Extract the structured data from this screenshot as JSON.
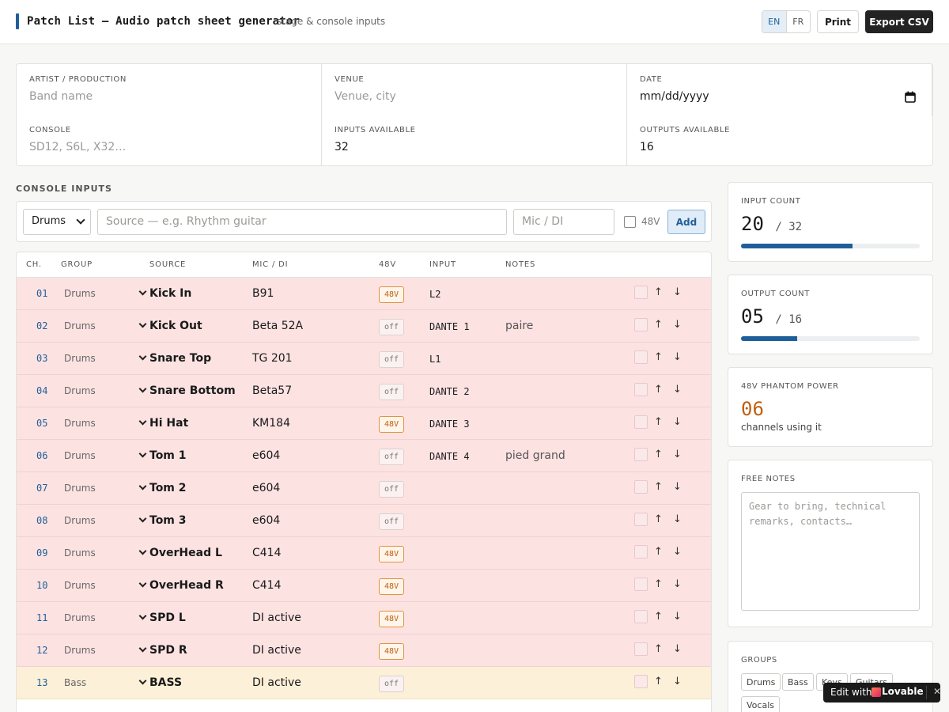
{
  "header": {
    "title": "Patch List — Audio patch sheet generator",
    "subtitle": "stage & console inputs",
    "lang_en": "EN",
    "lang_fr": "FR",
    "print_label": "Print",
    "export_label": "Export CSV"
  },
  "info": {
    "artist_label": "ARTIST / PRODUCTION",
    "artist_placeholder": "Band name",
    "venue_label": "VENUE",
    "venue_placeholder": "Venue, city",
    "date_label": "DATE",
    "date_value": "mm/dd/yyyy",
    "console_label": "CONSOLE",
    "console_placeholder": "SD12, S6L, X32…",
    "inputs_label": "INPUTS AVAILABLE",
    "inputs_value": "32",
    "outputs_label": "OUTPUTS AVAILABLE",
    "outputs_value": "16"
  },
  "section": {
    "title": "CONSOLE INPUTS"
  },
  "addrow": {
    "group_value": "Drums",
    "source_placeholder": "Source — e.g. Rhythm guitar",
    "mic_placeholder": "Mic / DI",
    "phantom_label": "48V",
    "add_label": "Add"
  },
  "table": {
    "headers": {
      "ch": "CH.",
      "group": "GROUP",
      "source": "SOURCE",
      "mic": "MIC / DI",
      "phantom": "48V",
      "input": "INPUT",
      "notes": "NOTES"
    },
    "rows": [
      {
        "ch": "01",
        "group": "Drums",
        "source": "Kick In",
        "mic": "B91",
        "phantom": "48V",
        "input": "L2",
        "notes": ""
      },
      {
        "ch": "02",
        "group": "Drums",
        "source": "Kick Out",
        "mic": "Beta 52A",
        "phantom": "off",
        "input": "DANTE 1",
        "notes": "paire"
      },
      {
        "ch": "03",
        "group": "Drums",
        "source": "Snare Top",
        "mic": "TG 201",
        "phantom": "off",
        "input": "L1",
        "notes": ""
      },
      {
        "ch": "04",
        "group": "Drums",
        "source": "Snare Bottom",
        "mic": "Beta57",
        "phantom": "off",
        "input": "DANTE 2",
        "notes": ""
      },
      {
        "ch": "05",
        "group": "Drums",
        "source": "Hi Hat",
        "mic": "KM184",
        "phantom": "48V",
        "input": "DANTE 3",
        "notes": ""
      },
      {
        "ch": "06",
        "group": "Drums",
        "source": "Tom 1",
        "mic": "e604",
        "phantom": "off",
        "input": "DANTE 4",
        "notes": "pied grand"
      },
      {
        "ch": "07",
        "group": "Drums",
        "source": "Tom 2",
        "mic": "e604",
        "phantom": "off",
        "input": "",
        "notes": ""
      },
      {
        "ch": "08",
        "group": "Drums",
        "source": "Tom 3",
        "mic": "e604",
        "phantom": "off",
        "input": "",
        "notes": ""
      },
      {
        "ch": "09",
        "group": "Drums",
        "source": "OverHead L",
        "mic": "C414",
        "phantom": "48V",
        "input": "",
        "notes": ""
      },
      {
        "ch": "10",
        "group": "Drums",
        "source": "OverHead R",
        "mic": "C414",
        "phantom": "48V",
        "input": "",
        "notes": ""
      },
      {
        "ch": "11",
        "group": "Drums",
        "source": "SPD L",
        "mic": "DI active",
        "phantom": "48V",
        "input": "",
        "notes": ""
      },
      {
        "ch": "12",
        "group": "Drums",
        "source": "SPD R",
        "mic": "DI active",
        "phantom": "48V",
        "input": "",
        "notes": ""
      },
      {
        "ch": "13",
        "group": "Bass",
        "source": "BASS",
        "mic": "DI active",
        "phantom": "off",
        "input": "",
        "notes": ""
      }
    ]
  },
  "stats": {
    "input_label": "INPUT COUNT",
    "input_used": "20",
    "input_total": "32",
    "output_label": "OUTPUT COUNT",
    "output_used": "05",
    "output_total": "16",
    "phantom_label": "48V PHANTOM POWER",
    "phantom_count": "06",
    "phantom_caption": "channels using it",
    "notes_label": "FREE NOTES",
    "notes_placeholder": "Gear to bring, technical remarks, contacts…",
    "groups_label": "GROUPS",
    "groups": [
      "Drums",
      "Bass",
      "Keys",
      "Guitars",
      "Vocals"
    ]
  },
  "badge": {
    "edit_with": "Edit with",
    "brand": "Lovable",
    "close": "✕"
  },
  "colors": {
    "accent": "#1f5f99",
    "drums_row": "#fde2e2",
    "bass_row": "#fdf0d8",
    "phantom_on": "#c05f10"
  }
}
